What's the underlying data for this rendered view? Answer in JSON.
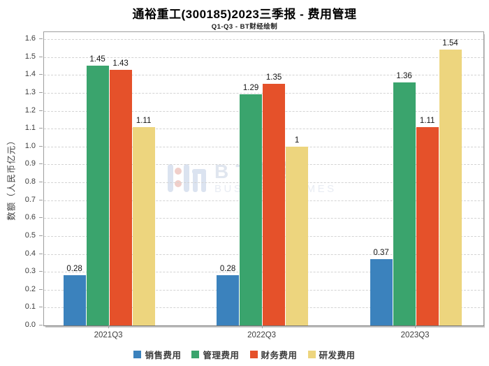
{
  "title": "通裕重工(300185)2023三季报 - 费用管理",
  "subtitle": "Q1-Q3 - BT财经绘制",
  "watermark": {
    "logo": "bt-finance-logo",
    "text_cn": "BT财经",
    "text_en": "BUSINESS TIMES"
  },
  "chart_data": {
    "type": "bar",
    "title": "通裕重工(300185)2023三季报 - 费用管理",
    "subtitle": "Q1-Q3 - BT财经绘制",
    "categories": [
      "2021Q3",
      "2022Q3",
      "2023Q3"
    ],
    "series": [
      {
        "name": "销售费用",
        "color": "#3b82bd",
        "values": [
          0.28,
          0.28,
          0.37
        ],
        "labels": [
          "0.28",
          "0.28",
          "0.37"
        ]
      },
      {
        "name": "管理费用",
        "color": "#3aa46d",
        "values": [
          1.45,
          1.29,
          1.36
        ],
        "labels": [
          "1.45",
          "1.29",
          "1.36"
        ]
      },
      {
        "name": "财务费用",
        "color": "#e5512a",
        "values": [
          1.43,
          1.35,
          1.11
        ],
        "labels": [
          "1.43",
          "1.35",
          "1.11"
        ]
      },
      {
        "name": "研发费用",
        "color": "#edd57e",
        "values": [
          1.11,
          1.0,
          1.54
        ],
        "labels": [
          "1.11",
          "1",
          "1.54"
        ]
      }
    ],
    "xlabel": "",
    "ylabel": "数额（人民币亿元）",
    "ylim": [
      0,
      1.6
    ],
    "ytick_step": 0.1,
    "ytick_decimals": 1,
    "grid": true,
    "grid_style": "dashed",
    "legend_position": "bottom"
  }
}
